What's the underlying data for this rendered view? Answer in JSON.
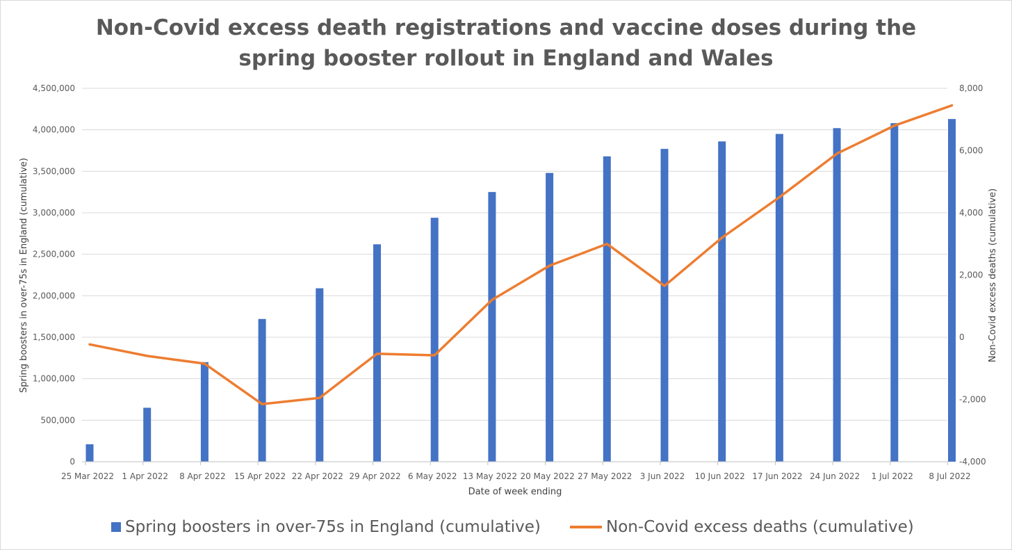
{
  "colors": {
    "bar": "#4472c4",
    "line": "#ed7d31",
    "grid": "#d9d9d9",
    "text": "#595959"
  },
  "chart_data": {
    "type": "bar",
    "title": "Non-Covid excess death registrations and vaccine doses during the spring booster rollout in England and Wales",
    "title_lines": [
      "Non-Covid excess death registrations and vaccine doses during the",
      "spring booster rollout in England and Wales"
    ],
    "xlabel": "Date of week ending",
    "ylabel_left": "Spring boosters in over-75s in England (cumulative)",
    "ylabel_right": "Non-Covid excess deaths (cumulative)",
    "categories": [
      "25 Mar 2022",
      "1 Apr 2022",
      "8 Apr 2022",
      "15 Apr 2022",
      "22 Apr 2022",
      "29 Apr 2022",
      "6 May 2022",
      "13 May 2022",
      "20 May 2022",
      "27 May 2022",
      "3 Jun 2022",
      "10 Jun 2022",
      "17 Jun 2022",
      "24 Jun 2022",
      "1 Jul 2022",
      "8 Jul 2022"
    ],
    "ylim_left": [
      0,
      4500000
    ],
    "ylim_right": [
      -4000,
      8000
    ],
    "yticks_left": [
      "0",
      "500,000",
      "1,000,000",
      "1,500,000",
      "2,000,000",
      "2,500,000",
      "3,000,000",
      "3,500,000",
      "4,000,000",
      "4,500,000"
    ],
    "yticks_right": [
      "-4,000",
      "-2,000",
      "0",
      "2,000",
      "4,000",
      "6,000",
      "8,000"
    ],
    "grid": true,
    "legend_position": "bottom",
    "series": [
      {
        "name": "Spring boosters in over-75s in England (cumulative)",
        "type": "bar",
        "axis": "left",
        "values": [
          210000,
          650000,
          1200000,
          1720000,
          2090000,
          2620000,
          2940000,
          3250000,
          3480000,
          3680000,
          3770000,
          3860000,
          3950000,
          4020000,
          4080000,
          4130000
        ]
      },
      {
        "name": "Non-Covid excess deaths (cumulative)",
        "type": "line",
        "axis": "right",
        "values": [
          -230,
          -600,
          -850,
          -2150,
          -1950,
          -530,
          -580,
          1200,
          2300,
          3000,
          1650,
          3200,
          4500,
          5900,
          6800,
          7450
        ]
      }
    ]
  }
}
